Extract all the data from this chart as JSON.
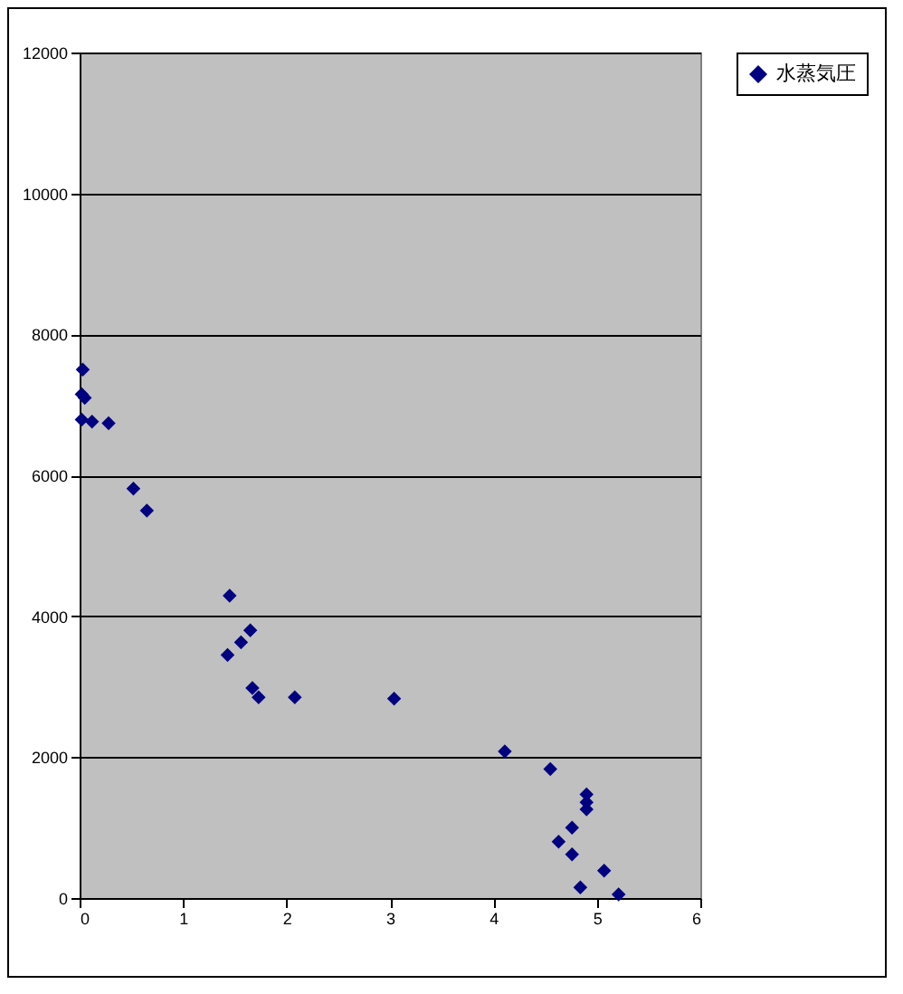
{
  "chart_data": {
    "type": "scatter",
    "marker": "diamond",
    "grid": "y",
    "legend": "right",
    "xlim": [
      0,
      6
    ],
    "xticks": [
      0,
      1,
      2,
      3,
      4,
      5,
      6
    ],
    "ylim": [
      0,
      12000
    ],
    "yticks": [
      0,
      2000,
      4000,
      6000,
      8000,
      10000,
      12000
    ],
    "series": [
      {
        "name": "水蒸気圧",
        "color": "#000080",
        "x": [
          0.03,
          0.02,
          0.05,
          0.02,
          0.12,
          0.28,
          0.52,
          0.65,
          1.45,
          1.65,
          1.56,
          1.43,
          1.67,
          1.73,
          2.08,
          3.04,
          4.11,
          4.55,
          4.9,
          4.9,
          4.9,
          4.76,
          4.63,
          4.76,
          5.07,
          4.84,
          5.21
        ],
        "values": [
          7500,
          7150,
          7100,
          6790,
          6760,
          6740,
          5810,
          5500,
          4290,
          3800,
          3630,
          3450,
          2980,
          2850,
          2850,
          2830,
          2080,
          1830,
          1470,
          1360,
          1260,
          1000,
          800,
          620,
          390,
          150,
          50
        ]
      }
    ]
  }
}
